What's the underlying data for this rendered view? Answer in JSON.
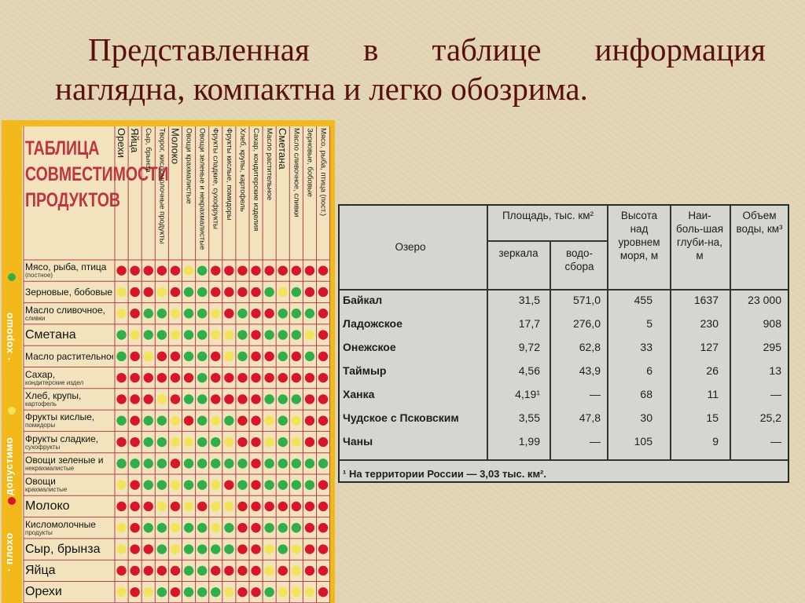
{
  "slide": {
    "title_words": [
      "Представленная",
      "в",
      "таблице",
      "информация"
    ],
    "title_line2": "наглядна, компактна и легко обозрима."
  },
  "compat_chart": {
    "title": "ТАБЛИЦА СОВМЕСТИМОСТИ ПРОДУКТОВ",
    "legend": [
      {
        "label": "хорошо",
        "color": "#2fae4a"
      },
      {
        "label": "допустимо",
        "color": "#f2e45a"
      },
      {
        "label": "плохо",
        "color": "#d8162a"
      }
    ],
    "columns": [
      "Орехи",
      "Яйца",
      "Сыр, брынза",
      "Творог, кисломолочные продукты",
      "Молоко",
      "Овощи крахмалистые",
      "Овощи зеленые и некрахмалистые",
      "Фрукты сладкие, сухофрукты",
      "Фрукты кислые, помидоры",
      "Хлеб, крупы, картофель",
      "Сахар, кондитерские изделия",
      "Масло растительное",
      "Сметана",
      "Масло сливочное, сливки",
      "Зерновые, бобовые",
      "Мясо, рыба, птица (пост.)"
    ],
    "rows": [
      {
        "label": "Мясо, рыба, птица",
        "sub": "(постное)",
        "big": false,
        "cells": "RRRRRYGRRRRRRRRR"
      },
      {
        "label": "Зерновые, бобовые",
        "sub": "",
        "big": false,
        "cells": "YRRYRGGRRRRGYGRR"
      },
      {
        "label": "Масло сливочное,",
        "sub": "сливки",
        "big": false,
        "cells": "YRGGYGGYRGRRGGGR"
      },
      {
        "label": "Сметана",
        "sub": "",
        "big": true,
        "cells": "GYGGYGGYYGRGGGYR"
      },
      {
        "label": "Масло растительное",
        "sub": "",
        "big": false,
        "cells": "GRYRRGGRYGRRGRGR"
      },
      {
        "label": "Сахар,",
        "sub": "кондитерские издел",
        "big": false,
        "cells": "RRRRRRGRRRRRRRRR"
      },
      {
        "label": "Хлеб, крупы,",
        "sub": "картофель",
        "big": false,
        "cells": "RRRYRGGRRRRGGGRR"
      },
      {
        "label": "Фрукты кислые,",
        "sub": "помидоры",
        "big": false,
        "cells": "GRGGYRGYGRRYGYRR"
      },
      {
        "label": "Фрукты сладкие,",
        "sub": "сухофрукты",
        "big": false,
        "cells": "RRGGYYGGYRRYGYRR"
      },
      {
        "label": "Овощи зеленые и",
        "sub": "некрахмалистые",
        "big": false,
        "cells": "GGGGRGGGGGRGGGGG"
      },
      {
        "label": "Овощи",
        "sub": "крахмалистые",
        "big": false,
        "cells": "YRGGYGGYRGRGGGGR"
      },
      {
        "label": "Молоко",
        "sub": "",
        "big": true,
        "cells": "RRRYRYRYYRRRRRRR"
      },
      {
        "label": "Кисломолочные",
        "sub": "продукты",
        "big": false,
        "cells": "YRGGYGGYGRRGGGRR"
      },
      {
        "label": "Сыр, брынза",
        "sub": "",
        "big": true,
        "cells": "YRRGYGGGGRRYGYRR"
      },
      {
        "label": "Яйца",
        "sub": "",
        "big": true,
        "cells": "RRRRRGGRRRRYRYRR"
      },
      {
        "label": "Орехи",
        "sub": "",
        "big": true,
        "cells": "YRYGRGGGYRRGYYYR"
      }
    ]
  },
  "lakes_table": {
    "headers": {
      "lake": "Озеро",
      "area": "Площадь, тыс. км²",
      "mirror": "зеркала",
      "basin": "водо-сбора",
      "height": "Высота над уровнем моря, м",
      "depth": "Наи-боль-шая глуби-на, м",
      "volume": "Объем воды, км³"
    },
    "rows": [
      {
        "name": "Байкал",
        "mirror": "31,5",
        "basin": "571,0",
        "height": "455",
        "depth": "1637",
        "volume": "23 000"
      },
      {
        "name": "Ладожское",
        "mirror": "17,7",
        "basin": "276,0",
        "height": "5",
        "depth": "230",
        "volume": "908"
      },
      {
        "name": "Онежское",
        "mirror": "9,72",
        "basin": "62,8",
        "height": "33",
        "depth": "127",
        "volume": "295"
      },
      {
        "name": "Таймыр",
        "mirror": "4,56",
        "basin": "43,9",
        "height": "6",
        "depth": "26",
        "volume": "13"
      },
      {
        "name": "Ханка",
        "mirror": "4,19¹",
        "basin": "—",
        "height": "68",
        "depth": "11",
        "volume": "—"
      },
      {
        "name": "Чудское с Псковским",
        "mirror": "3,55",
        "basin": "47,8",
        "height": "30",
        "depth": "15",
        "volume": "25,2"
      },
      {
        "name": "Чаны",
        "mirror": "1,99",
        "basin": "—",
        "height": "105",
        "depth": "9",
        "volume": "—"
      }
    ],
    "footnote": "¹ На территории России — 3,03 тыс. км²."
  }
}
